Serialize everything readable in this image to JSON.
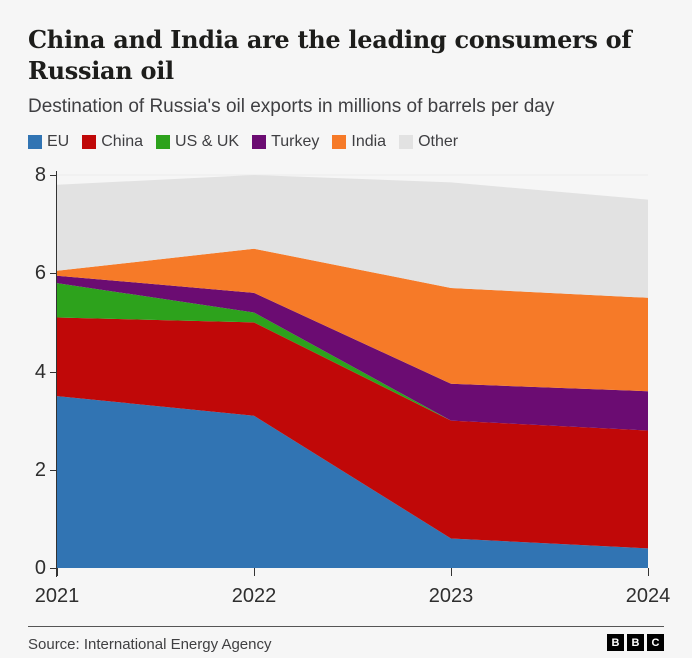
{
  "header": {
    "title_lines": [
      "China and India are the leading consumers of",
      "Russian oil"
    ],
    "subtitle": "Destination of Russia's oil exports in millions of barrels per day"
  },
  "legend": [
    {
      "label": "EU",
      "color": "#3174b3"
    },
    {
      "label": "China",
      "color": "#c00808"
    },
    {
      "label": "US & UK",
      "color": "#2da21c"
    },
    {
      "label": "Turkey",
      "color": "#6b0c72"
    },
    {
      "label": "India",
      "color": "#f67a28"
    },
    {
      "label": "Other",
      "color": "#e2e2e2"
    }
  ],
  "chart_data": {
    "type": "area",
    "stacked": true,
    "title": "China and India are the leading consumers of Russian oil",
    "subtitle": "Destination of Russia's oil exports in millions of barrels per day",
    "x": [
      "2021",
      "2022",
      "2023",
      "2024"
    ],
    "series": [
      {
        "name": "EU",
        "color": "#3174b3",
        "values": [
          3.5,
          3.1,
          0.6,
          0.4
        ]
      },
      {
        "name": "China",
        "color": "#c00808",
        "values": [
          1.6,
          1.9,
          2.4,
          2.4
        ]
      },
      {
        "name": "US & UK",
        "color": "#2da21c",
        "values": [
          0.7,
          0.2,
          0,
          0
        ]
      },
      {
        "name": "Turkey",
        "color": "#6b0c72",
        "values": [
          0.15,
          0.4,
          0.75,
          0.8
        ]
      },
      {
        "name": "India",
        "color": "#f67a28",
        "values": [
          0.1,
          0.9,
          1.95,
          1.9
        ]
      },
      {
        "name": "Other",
        "color": "#e2e2e2",
        "values": [
          1.75,
          1.5,
          2.15,
          2.0
        ]
      }
    ],
    "ylim": [
      0,
      8
    ],
    "yticks": [
      0,
      2,
      4,
      6,
      8
    ],
    "xlabel": "",
    "ylabel": "",
    "grid": true,
    "gridline_color": "#ececec",
    "legend_position": "top"
  },
  "footer": {
    "source": "Source: International Energy Agency",
    "logo_letters": [
      "B",
      "B",
      "C"
    ]
  }
}
